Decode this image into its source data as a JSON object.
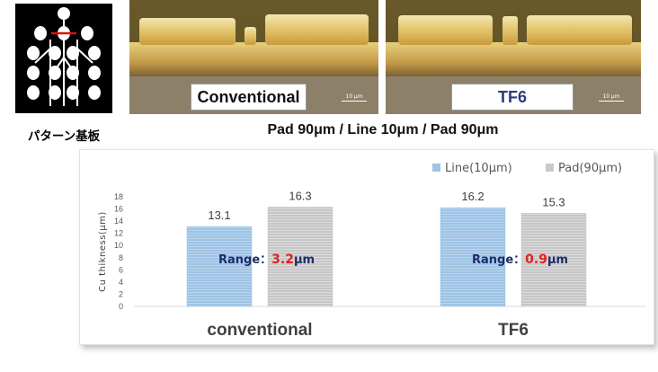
{
  "pattern": {
    "caption": "パターン基板"
  },
  "micrographs": [
    {
      "label": "Conventional",
      "scale": "10 μm",
      "label_color": "#111111"
    },
    {
      "label": "TF6",
      "scale": "10 μm",
      "label_color": "#2e3a7e"
    }
  ],
  "subtitle": "Pad 90μm / Line 10μm / Pad 90μm",
  "chart_data": {
    "type": "bar",
    "categories": [
      "conventional",
      "TF6"
    ],
    "series": [
      {
        "name": "Line(10μm)",
        "values": [
          13.1,
          16.2
        ],
        "color": "#9dc3e6"
      },
      {
        "name": "Pad(90μm)",
        "values": [
          16.3,
          15.3
        ],
        "color": "#c9c9c9"
      }
    ],
    "ylabel": "Cu thikness(μm)",
    "ylim": [
      0,
      18
    ],
    "yticks": [
      "0",
      "2",
      "4",
      "6",
      "8",
      "10",
      "12",
      "14",
      "16",
      "18"
    ],
    "data_labels": [
      "13.1",
      "16.2",
      "16.3",
      "15.3"
    ],
    "legend_position": "top-right",
    "grid": false,
    "annotations": [
      {
        "prefix": "Range：",
        "value": "3.2",
        "unit": "μm"
      },
      {
        "prefix": "Range：",
        "value": "0.9",
        "unit": "μm"
      }
    ],
    "annotation_color": "#1f2d6b",
    "annotation_value_color": "#e52020"
  }
}
